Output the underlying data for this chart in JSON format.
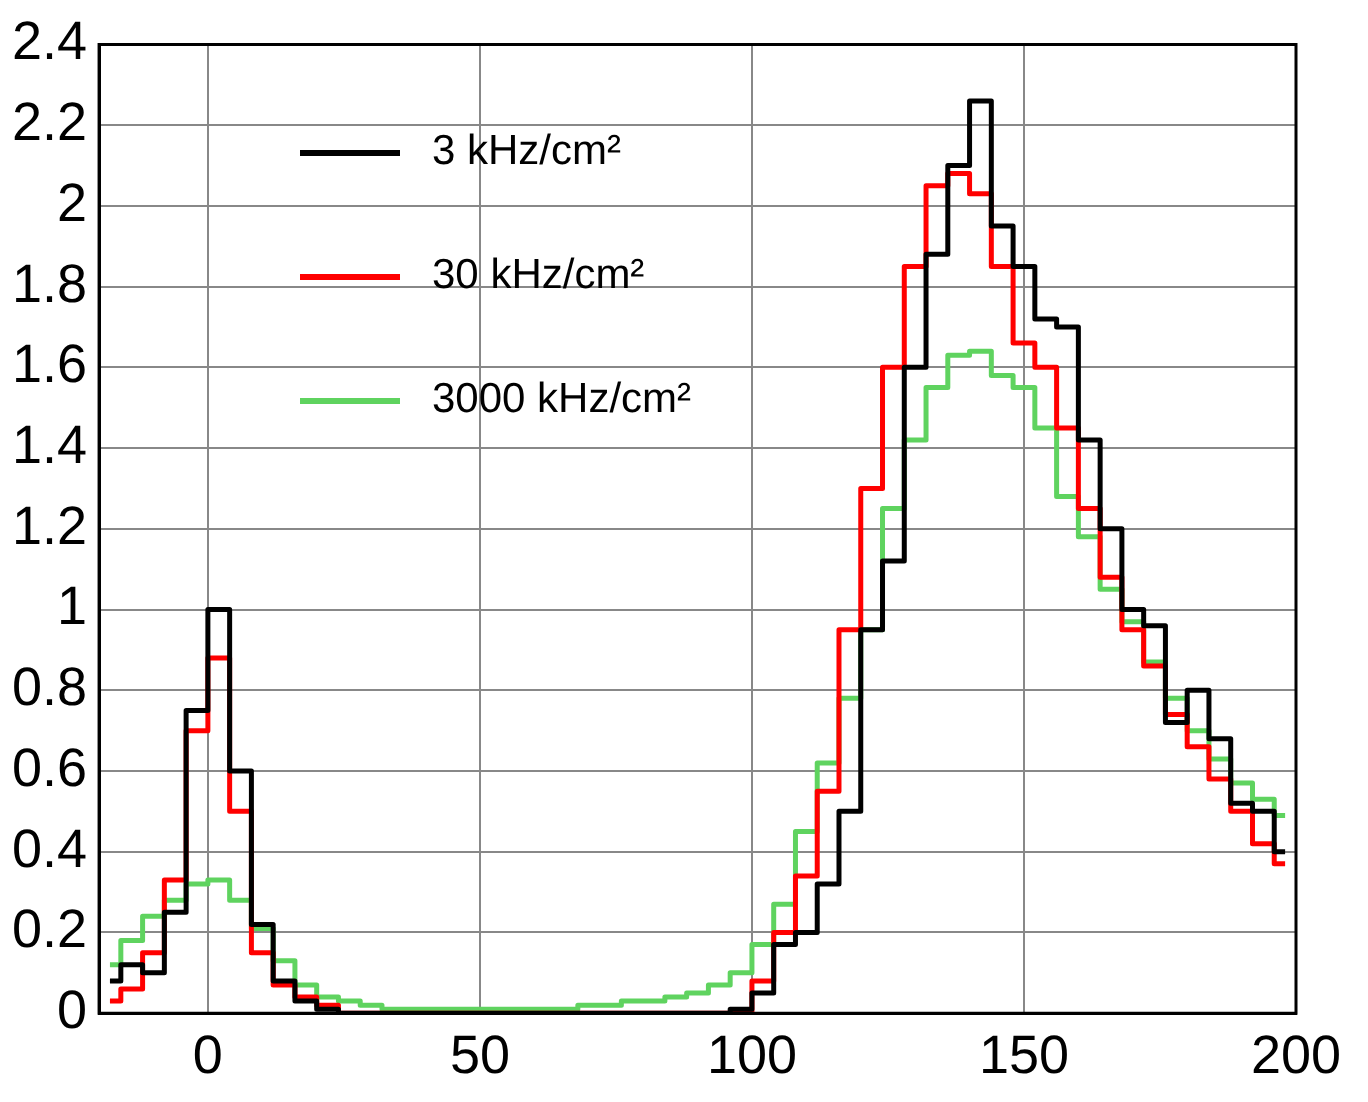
{
  "chart_data": {
    "type": "step",
    "x": [
      -18,
      -14,
      -10,
      -6,
      -2,
      2,
      6,
      10,
      14,
      18,
      22,
      26,
      30,
      34,
      38,
      42,
      46,
      50,
      54,
      58,
      62,
      66,
      70,
      74,
      78,
      82,
      86,
      90,
      94,
      98,
      102,
      106,
      110,
      114,
      118,
      122,
      126,
      130,
      134,
      138,
      142,
      146,
      150,
      154,
      158,
      162,
      166,
      170,
      174,
      178,
      182,
      186,
      190,
      194,
      198
    ],
    "xlim": [
      -20,
      200
    ],
    "xticks": [
      0,
      50,
      100,
      150,
      200
    ],
    "ylim": [
      0,
      2.4
    ],
    "yticks": [
      0,
      0.2,
      0.4,
      0.6,
      0.8,
      1,
      1.2,
      1.4,
      1.6,
      1.8,
      2,
      2.2,
      2.4
    ],
    "grid": true,
    "legend": "top left",
    "marker": "none",
    "line_style": "solid",
    "series": [
      {
        "name": "3 kHz/cm²",
        "color": "#000000",
        "values": [
          0.08,
          0.12,
          0.1,
          0.25,
          0.75,
          1.0,
          0.6,
          0.22,
          0.08,
          0.03,
          0.01,
          0,
          0,
          0,
          0,
          0,
          0,
          0,
          0,
          0,
          0,
          0,
          0,
          0,
          0,
          0,
          0,
          0,
          0,
          0.01,
          0.05,
          0.17,
          0.2,
          0.32,
          0.5,
          0.95,
          1.12,
          1.6,
          1.88,
          2.1,
          2.26,
          1.95,
          1.85,
          1.72,
          1.7,
          1.42,
          1.2,
          1.0,
          0.96,
          0.72,
          0.8,
          0.68,
          0.52,
          0.5,
          0.4
        ]
      },
      {
        "name": "30 kHz/cm²",
        "color": "#ff0000",
        "values": [
          0.03,
          0.06,
          0.15,
          0.33,
          0.7,
          0.88,
          0.5,
          0.15,
          0.07,
          0.04,
          0.02,
          0,
          0,
          0,
          0,
          0,
          0,
          0,
          0,
          0,
          0,
          0,
          0,
          0,
          0,
          0,
          0,
          0,
          0,
          0,
          0.08,
          0.2,
          0.34,
          0.55,
          0.95,
          1.3,
          1.6,
          1.85,
          2.05,
          2.08,
          2.03,
          1.85,
          1.66,
          1.6,
          1.45,
          1.25,
          1.08,
          0.95,
          0.86,
          0.74,
          0.66,
          0.58,
          0.5,
          0.42,
          0.37
        ]
      },
      {
        "name": "3000 kHz/cm²",
        "color": "#5fd35f",
        "values": [
          0.12,
          0.18,
          0.24,
          0.28,
          0.32,
          0.33,
          0.28,
          0.21,
          0.13,
          0.07,
          0.04,
          0.03,
          0.02,
          0.01,
          0.01,
          0.01,
          0.01,
          0.01,
          0.01,
          0.01,
          0.01,
          0.01,
          0.02,
          0.02,
          0.03,
          0.03,
          0.04,
          0.05,
          0.07,
          0.1,
          0.17,
          0.27,
          0.45,
          0.62,
          0.78,
          0.95,
          1.25,
          1.42,
          1.55,
          1.63,
          1.64,
          1.58,
          1.55,
          1.45,
          1.28,
          1.18,
          1.05,
          0.97,
          0.87,
          0.78,
          0.7,
          0.63,
          0.57,
          0.53,
          0.49
        ]
      }
    ]
  }
}
